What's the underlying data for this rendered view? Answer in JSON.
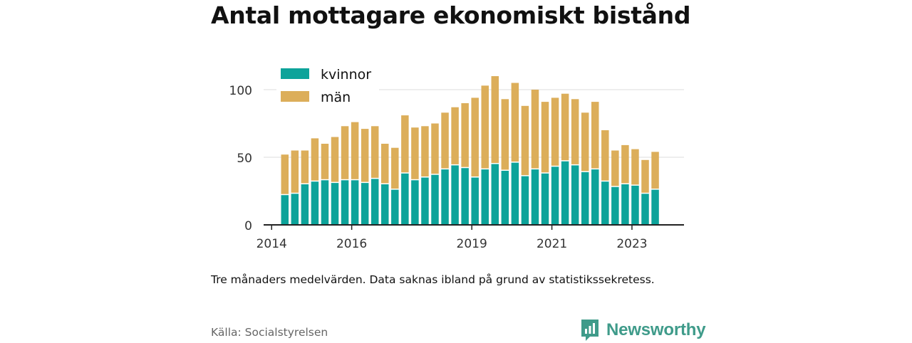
{
  "title": "Antal mottagare ekonomiskt bistånd",
  "note": "Tre månaders medelvärden. Data saknas ibland på grund av statistikssekretess.",
  "source": "Källa: Socialstyrelsen",
  "brand": {
    "name": "Newsworthy",
    "color": "#3f9b8a",
    "icon": "bar-chart-speech-bubble-icon"
  },
  "colors": {
    "kvinnor": "#0da39a",
    "man": "#dcae5a",
    "axis": "#222222",
    "grid": "#dddddd"
  },
  "chart_data": {
    "type": "bar",
    "stacked": true,
    "title": "Antal mottagare ekonomiskt bistånd",
    "xlabel": "",
    "ylabel": "",
    "ylim": [
      0,
      115
    ],
    "xlim": [
      2013.8,
      2024.3
    ],
    "yticks": [
      0,
      50,
      100
    ],
    "xticks": [
      {
        "value": 2014,
        "label": "2014"
      },
      {
        "value": 2016,
        "label": "2016"
      },
      {
        "value": 2019,
        "label": "2019"
      },
      {
        "value": 2021,
        "label": "2021"
      },
      {
        "value": 2023,
        "label": "2023"
      }
    ],
    "grid": "horizontal",
    "legend_position": "top-left",
    "x": [
      2014.33,
      2014.58,
      2014.83,
      2015.08,
      2015.33,
      2015.58,
      2015.83,
      2016.08,
      2016.33,
      2016.58,
      2016.83,
      2017.08,
      2017.33,
      2017.58,
      2017.83,
      2018.08,
      2018.33,
      2018.58,
      2018.83,
      2019.08,
      2019.33,
      2019.58,
      2019.83,
      2020.08,
      2020.33,
      2020.58,
      2020.83,
      2021.08,
      2021.33,
      2021.58,
      2021.83,
      2022.08,
      2022.33,
      2022.58,
      2022.83,
      2023.08,
      2023.33,
      2023.58
    ],
    "series": [
      {
        "name": "kvinnor",
        "values": [
          22,
          23,
          30,
          32,
          33,
          31,
          33,
          33,
          31,
          34,
          30,
          26,
          38,
          33,
          35,
          37,
          41,
          44,
          42,
          35,
          41,
          45,
          40,
          46,
          36,
          41,
          38,
          43,
          47,
          44,
          39,
          41,
          32,
          28,
          30,
          29,
          23,
          26
        ]
      },
      {
        "name": "män",
        "values": [
          30,
          32,
          25,
          32,
          27,
          34,
          40,
          43,
          40,
          39,
          30,
          31,
          43,
          39,
          38,
          38,
          42,
          43,
          48,
          59,
          62,
          65,
          53,
          59,
          52,
          59,
          53,
          51,
          50,
          49,
          44,
          50,
          38,
          27,
          29,
          27,
          25,
          28
        ]
      }
    ]
  }
}
